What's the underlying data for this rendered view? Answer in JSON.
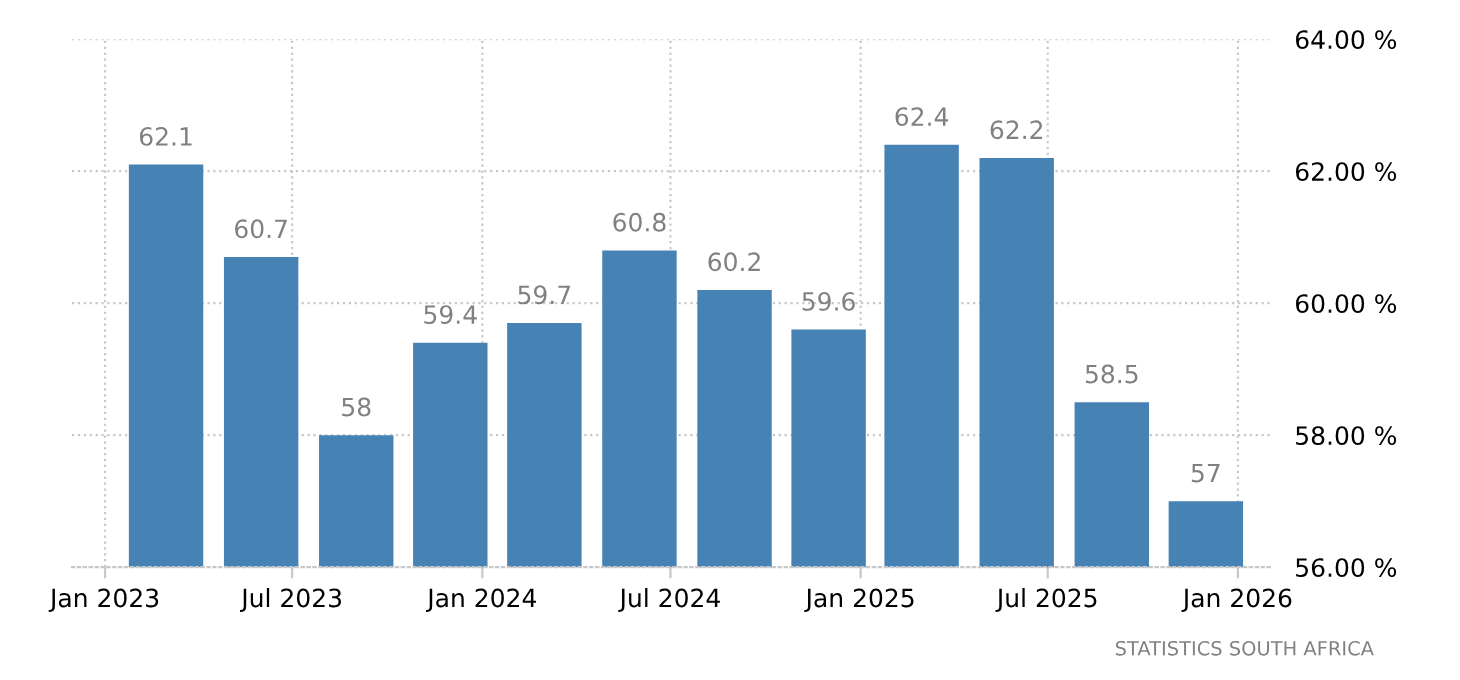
{
  "chart_data": {
    "type": "bar",
    "x": [
      "2023-03-01",
      "2023-06-01",
      "2023-09-01",
      "2023-12-01",
      "2024-03-01",
      "2024-06-01",
      "2024-09-01",
      "2024-12-01",
      "2025-03-01",
      "2025-06-01",
      "2025-09-01",
      "2025-12-01"
    ],
    "values": [
      62.1,
      60.7,
      58,
      59.4,
      59.7,
      60.8,
      60.2,
      59.6,
      62.4,
      62.2,
      58.5,
      57
    ],
    "color": "#4682b4",
    "data_labels": true,
    "xlim": [
      "2022-11-30",
      "2026-02-03"
    ],
    "xticks": [
      {
        "value": "2023-01-01",
        "label": "Jan 2023"
      },
      {
        "value": "2023-07-01",
        "label": "Jul 2023"
      },
      {
        "value": "2024-01-01",
        "label": "Jan 2024"
      },
      {
        "value": "2024-07-01",
        "label": "Jul 2024"
      },
      {
        "value": "2025-01-01",
        "label": "Jan 2025"
      },
      {
        "value": "2025-07-01",
        "label": "Jul 2025"
      },
      {
        "value": "2026-01-01",
        "label": "Jan 2026"
      }
    ],
    "ylim": [
      56,
      64
    ],
    "yticks": [
      {
        "value": 56,
        "label": "56.00 %"
      },
      {
        "value": 58,
        "label": "58.00 %"
      },
      {
        "value": 60,
        "label": "60.00 %"
      },
      {
        "value": 62,
        "label": "62.00 %"
      },
      {
        "value": 64,
        "label": "64.00 %"
      }
    ],
    "grid": true,
    "annotations": [
      "STATISTICS SOUTH AFRICA"
    ]
  }
}
